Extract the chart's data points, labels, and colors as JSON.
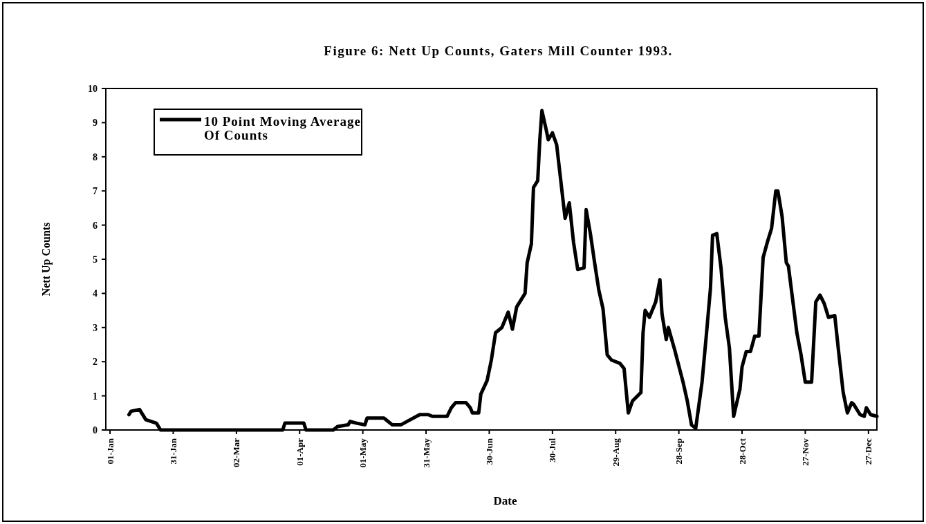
{
  "chart_data": {
    "type": "line",
    "title": "Figure 6: Nett Up Counts, Gaters Mill Counter 1993.",
    "xlabel": "Date",
    "ylabel": "Nett Up Counts",
    "xlim": [
      "1992-12-30",
      "1993-12-31"
    ],
    "xticks": [
      {
        "value": "1993-01-01",
        "label": "01-Jan"
      },
      {
        "value": "1993-01-31",
        "label": "31-Jan"
      },
      {
        "value": "1993-03-02",
        "label": "02-Mar"
      },
      {
        "value": "1993-04-01",
        "label": "01-Apr"
      },
      {
        "value": "1993-05-01",
        "label": "01-May"
      },
      {
        "value": "1993-05-31",
        "label": "31-May"
      },
      {
        "value": "1993-06-30",
        "label": "30-Jun"
      },
      {
        "value": "1993-07-30",
        "label": "30-Jul"
      },
      {
        "value": "1993-08-29",
        "label": "29-Aug"
      },
      {
        "value": "1993-09-28",
        "label": "28-Sep"
      },
      {
        "value": "1993-10-28",
        "label": "28-Oct"
      },
      {
        "value": "1993-11-27",
        "label": "27-Nov"
      },
      {
        "value": "1993-12-27",
        "label": "27-Dec"
      }
    ],
    "ylim": [
      0,
      10
    ],
    "yticks": [
      0,
      1,
      2,
      3,
      4,
      5,
      6,
      7,
      8,
      9,
      10
    ],
    "grid": false,
    "legend": "top left",
    "marker": "none",
    "line_style": "solid",
    "x": [
      "1993-01-10",
      "1993-01-11",
      "1993-01-15",
      "1993-01-18",
      "1993-01-23",
      "1993-01-25",
      "1993-03-24",
      "1993-03-25",
      "1993-04-03",
      "1993-04-04",
      "1993-04-17",
      "1993-04-19",
      "1993-04-24",
      "1993-04-25",
      "1993-04-28",
      "1993-05-02",
      "1993-05-03",
      "1993-05-11",
      "1993-05-15",
      "1993-05-19",
      "1993-05-22",
      "1993-05-28",
      "1993-06-01",
      "1993-06-03",
      "1993-06-10",
      "1993-06-12",
      "1993-06-14",
      "1993-06-19",
      "1993-06-21",
      "1993-06-22",
      "1993-06-25",
      "1993-06-26",
      "1993-06-29",
      "1993-07-01",
      "1993-07-03",
      "1993-07-06",
      "1993-07-09",
      "1993-07-11",
      "1993-07-13",
      "1993-07-17",
      "1993-07-18",
      "1993-07-20",
      "1993-07-21",
      "1993-07-23",
      "1993-07-24",
      "1993-07-25",
      "1993-07-27",
      "1993-07-28",
      "1993-07-30",
      "1993-08-01",
      "1993-08-05",
      "1993-08-07",
      "1993-08-09",
      "1993-08-11",
      "1993-08-14",
      "1993-08-15",
      "1993-08-17",
      "1993-08-19",
      "1993-08-21",
      "1993-08-23",
      "1993-08-25",
      "1993-08-27",
      "1993-08-31",
      "1993-09-02",
      "1993-09-04",
      "1993-09-06",
      "1993-09-10",
      "1993-09-11",
      "1993-09-12",
      "1993-09-14",
      "1993-09-17",
      "1993-09-19",
      "1993-09-20",
      "1993-09-22",
      "1993-09-23",
      "1993-09-26",
      "1993-09-30",
      "1993-10-02",
      "1993-10-04",
      "1993-10-06",
      "1993-10-09",
      "1993-10-11",
      "1993-10-13",
      "1993-10-14",
      "1993-10-16",
      "1993-10-18",
      "1993-10-20",
      "1993-10-22",
      "1993-10-24",
      "1993-10-27",
      "1993-10-28",
      "1993-10-30",
      "1993-11-01",
      "1993-11-03",
      "1993-11-05",
      "1993-11-07",
      "1993-11-09",
      "1993-11-11",
      "1993-11-13",
      "1993-11-14",
      "1993-11-16",
      "1993-11-18",
      "1993-11-19",
      "1993-11-23",
      "1993-11-25",
      "1993-11-27",
      "1993-11-30",
      "1993-12-02",
      "1993-12-04",
      "1993-12-06",
      "1993-12-08",
      "1993-12-11",
      "1993-12-13",
      "1993-12-15",
      "1993-12-17",
      "1993-12-19",
      "1993-12-20",
      "1993-12-23",
      "1993-12-25",
      "1993-12-26",
      "1993-12-28",
      "1993-12-31"
    ],
    "series": [
      {
        "name": "10 Point Moving Average Of Counts",
        "color": "#000000",
        "values": [
          0.45,
          0.55,
          0.6,
          0.3,
          0.2,
          0,
          0,
          0.2,
          0.2,
          0,
          0,
          0.1,
          0.15,
          0.25,
          0.2,
          0.15,
          0.35,
          0.35,
          0.15,
          0.15,
          0.25,
          0.45,
          0.45,
          0.4,
          0.4,
          0.65,
          0.8,
          0.8,
          0.65,
          0.5,
          0.5,
          1.05,
          1.45,
          2.05,
          2.85,
          3.0,
          3.45,
          2.95,
          3.6,
          4.0,
          4.9,
          5.45,
          7.1,
          7.3,
          8.5,
          9.35,
          8.8,
          8.5,
          8.7,
          8.35,
          6.2,
          6.65,
          5.5,
          4.7,
          4.75,
          6.45,
          5.75,
          4.9,
          4.1,
          3.55,
          2.2,
          2.05,
          1.95,
          1.8,
          0.5,
          0.85,
          1.1,
          2.85,
          3.5,
          3.3,
          3.75,
          4.4,
          3.4,
          2.65,
          3.0,
          2.35,
          1.4,
          0.85,
          0.15,
          0.05,
          1.4,
          2.75,
          4.15,
          5.7,
          5.75,
          4.75,
          3.3,
          2.4,
          0.4,
          1.2,
          1.85,
          2.3,
          2.3,
          2.75,
          2.75,
          5.05,
          5.5,
          5.9,
          7.0,
          7.0,
          6.25,
          4.9,
          4.8,
          2.85,
          2.2,
          1.4,
          1.4,
          3.75,
          3.95,
          3.7,
          3.3,
          3.35,
          2.2,
          1.1,
          0.5,
          0.8,
          0.75,
          0.45,
          0.4,
          0.65,
          0.45,
          0.4
        ]
      }
    ]
  }
}
